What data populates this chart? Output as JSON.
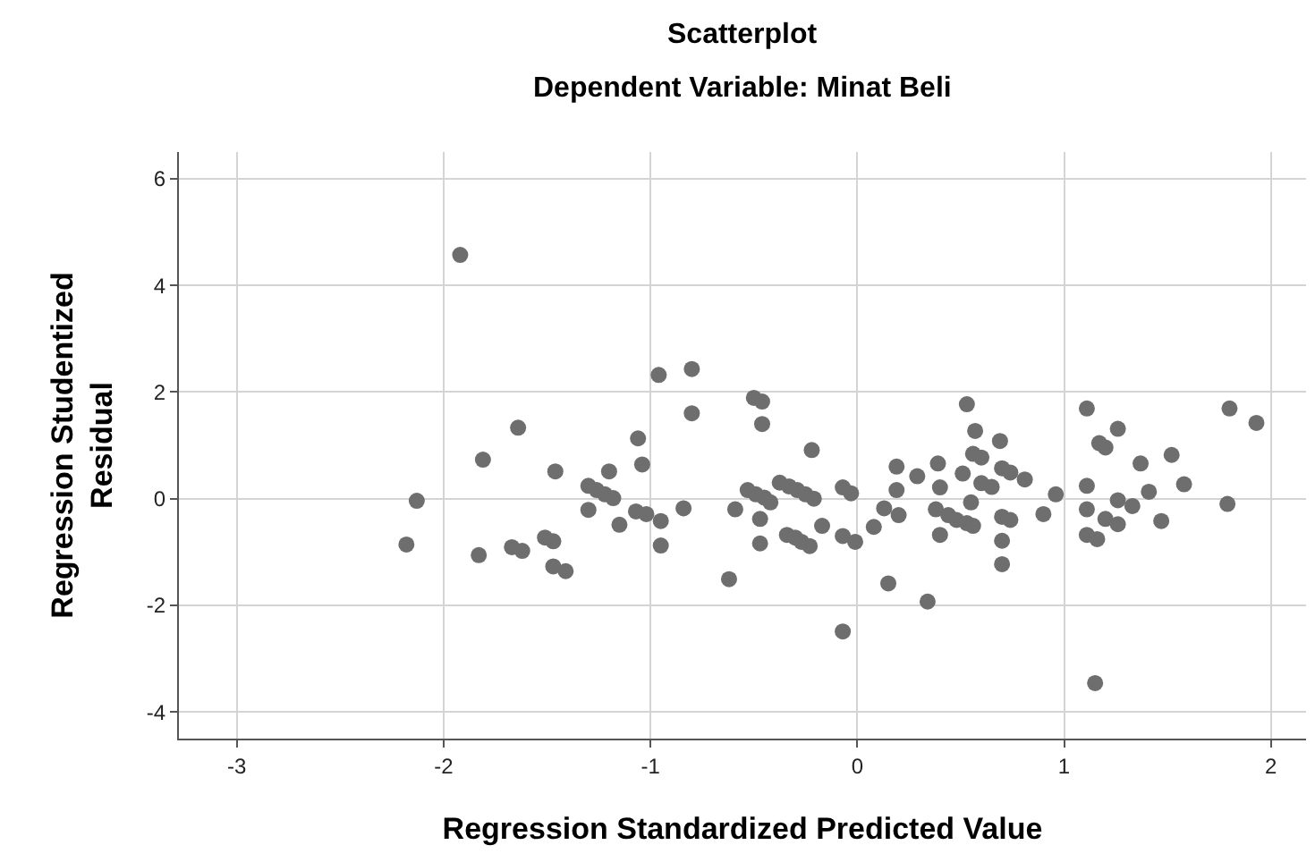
{
  "chart_data": {
    "type": "scatter",
    "title": "Scatterplot",
    "subtitle": "Dependent Variable: Minat Beli",
    "xlabel": "Regression Standardized Predicted Value",
    "ylabel": "Regression Studentized Residual",
    "xlim": [
      -3.28,
      2.17
    ],
    "ylim": [
      -4.5,
      6.5
    ],
    "xticks": [
      -3,
      -2,
      -1,
      0,
      1,
      2
    ],
    "yticks": [
      -4,
      -2,
      0,
      2,
      4,
      6
    ],
    "grid": true,
    "marker": "circle",
    "series": [
      {
        "color": "#6e6e6e",
        "x": [
          -1.92,
          -1.64,
          -1.81,
          -1.46,
          -2.13,
          -2.18,
          -1.83,
          -1.67,
          -1.62,
          -1.51,
          -1.47,
          -1.47,
          -1.41,
          -1.3,
          -1.26,
          -1.22,
          -1.18,
          -1.2,
          -1.3,
          -1.15,
          -1.06,
          -1.04,
          -1.07,
          -1.02,
          -0.96,
          -0.95,
          -0.95,
          -0.8,
          -0.8,
          -0.84,
          -0.62,
          -0.59,
          -0.5,
          -0.46,
          -0.46,
          -0.53,
          -0.49,
          -0.45,
          -0.42,
          -0.47,
          -0.47,
          -0.375,
          -0.33,
          -0.29,
          -0.25,
          -0.21,
          -0.22,
          -0.34,
          -0.3,
          -0.27,
          -0.23,
          -0.17,
          -0.07,
          -0.03,
          -0.07,
          -0.01,
          -0.07,
          0.08,
          0.15,
          0.13,
          0.2,
          0.19,
          0.19,
          0.29,
          0.34,
          0.39,
          0.4,
          0.38,
          0.44,
          0.48,
          0.53,
          0.56,
          0.4,
          0.53,
          0.57,
          0.56,
          0.6,
          0.51,
          0.55,
          0.6,
          0.65,
          0.69,
          0.7,
          0.74,
          0.81,
          0.7,
          0.74,
          0.7,
          0.7,
          0.96,
          0.9,
          1.11,
          1.17,
          1.2,
          1.26,
          1.11,
          1.11,
          1.11,
          1.16,
          1.15,
          1.2,
          1.26,
          1.26,
          1.33,
          1.37,
          1.41,
          1.52,
          1.58,
          1.47,
          1.8,
          1.93,
          1.79
        ],
        "values": [
          4.57,
          1.33,
          0.73,
          0.51,
          -0.04,
          -0.86,
          -1.06,
          -0.91,
          -0.98,
          -0.73,
          -0.8,
          -1.27,
          -1.36,
          0.24,
          0.16,
          0.08,
          0.01,
          0.51,
          -0.21,
          -0.49,
          1.13,
          0.64,
          -0.24,
          -0.29,
          2.32,
          -0.42,
          -0.88,
          2.43,
          1.6,
          -0.18,
          -1.51,
          -0.2,
          1.89,
          1.82,
          1.4,
          0.16,
          0.08,
          0.02,
          -0.07,
          -0.38,
          -0.84,
          0.3,
          0.23,
          0.16,
          0.08,
          0.0,
          0.91,
          -0.68,
          -0.73,
          -0.81,
          -0.89,
          -0.51,
          0.21,
          0.1,
          -0.7,
          -0.81,
          -2.49,
          -0.53,
          -1.59,
          -0.18,
          -0.31,
          0.6,
          0.16,
          0.42,
          -1.93,
          0.66,
          0.21,
          -0.2,
          -0.31,
          -0.4,
          -0.46,
          -0.51,
          -0.68,
          1.77,
          1.27,
          0.84,
          0.77,
          0.47,
          -0.07,
          0.29,
          0.22,
          1.08,
          0.57,
          0.49,
          0.36,
          -0.34,
          -0.4,
          -0.79,
          -1.23,
          0.08,
          -0.29,
          1.69,
          1.04,
          0.96,
          1.31,
          0.24,
          -0.2,
          -0.68,
          -0.76,
          -3.46,
          -0.38,
          -0.48,
          -0.03,
          -0.14,
          0.66,
          0.13,
          0.82,
          0.27,
          -0.42,
          1.69,
          1.42,
          -0.1
        ]
      }
    ]
  }
}
